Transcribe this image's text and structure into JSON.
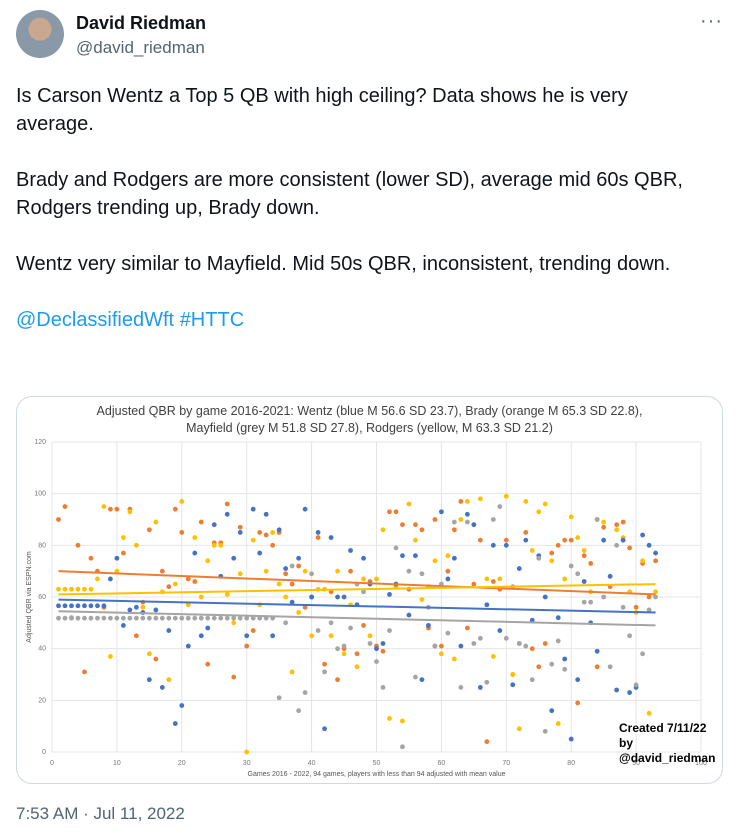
{
  "author": {
    "name": "David Riedman",
    "handle": "@david_riedman"
  },
  "more_label": "···",
  "tweet": {
    "paragraphs": [
      "Is Carson Wentz a Top 5 QB with high ceiling? Data shows he is very average.",
      "Brady and Rodgers are more consistent (lower SD), average mid 60s QBR, Rodgers trending up, Brady down.",
      "Wentz very similar to Mayfield. Mid 50s QBR, inconsistent, trending down."
    ],
    "mention": "@DeclassifiedWft",
    "hashtag": "#HTTC"
  },
  "timestamp": "7:53 AM · Jul 11, 2022",
  "chart_data": {
    "type": "scatter",
    "title_line1": "Adjusted QBR by game 2016-2021: Wentz (blue M 56.6 SD 23.7), Brady (orange M 65.3 SD 22.8),",
    "title_line2": "Mayfield (grey M 51.8 SD 27.8), Rodgers (yellow, M 63.3 SD 21.2)",
    "xlabel": "Games 2016 - 2022, 94 games, players with less than 94 adjusted with mean value",
    "ylabel": "Adjusted QBR via ESPN.com",
    "xlim": [
      0,
      100
    ],
    "ylim": [
      0,
      120
    ],
    "xticks": [
      "0",
      "10",
      "20",
      "30",
      "40",
      "50",
      "60",
      "70",
      "80",
      "90",
      "100"
    ],
    "yticks": [
      "0",
      "20",
      "40",
      "60",
      "80",
      "100",
      "120"
    ],
    "grid": true,
    "annotation_line1": "Created 7/11/22 by",
    "annotation_line2": "@david_riedman",
    "series": [
      {
        "name": "Brady",
        "color": "#ed7d31",
        "trend": [
          70,
          61
        ],
        "values": [
          90,
          95,
          52,
          80,
          31,
          75,
          70,
          56,
          94,
          94,
          77,
          94,
          45,
          58,
          86,
          36,
          70,
          64,
          94,
          85,
          67,
          66,
          89,
          34,
          81,
          81,
          96,
          29,
          87,
          41,
          47,
          85,
          84,
          80,
          85,
          69,
          65,
          72,
          56,
          60,
          83,
          34,
          62,
          28,
          40,
          70,
          38,
          49,
          66,
          41,
          39,
          93,
          93,
          88,
          63,
          88,
          86,
          48,
          90,
          41,
          70,
          86,
          97,
          48,
          65,
          82,
          4,
          66,
          63,
          82,
          30,
          42,
          85,
          40,
          33,
          42,
          77,
          80,
          82,
          82,
          19,
          76,
          73,
          33,
          87,
          64,
          88,
          89,
          79,
          56,
          73,
          60,
          74
        ]
      },
      {
        "name": "Rodgers",
        "color": "#ffc000",
        "trend": [
          61,
          65
        ],
        "values": [
          63,
          63,
          63,
          63,
          63,
          63,
          67,
          95,
          37,
          70,
          83,
          93,
          80,
          56,
          38,
          89,
          62,
          28,
          65,
          97,
          57,
          83,
          60,
          74,
          80,
          80,
          61,
          50,
          69,
          0,
          82,
          57,
          70,
          85,
          65,
          60,
          31,
          54,
          70,
          45,
          63,
          63,
          45,
          70,
          38,
          57,
          33,
          67,
          45,
          67,
          86,
          13,
          64,
          12,
          96,
          82,
          59,
          64,
          74,
          38,
          76,
          36,
          90,
          97,
          88,
          98,
          67,
          37,
          67,
          99,
          30,
          9,
          97,
          78,
          93,
          96,
          74,
          11,
          67,
          91,
          83,
          78,
          62,
          90,
          89,
          68,
          86,
          83,
          62,
          54,
          74,
          15,
          62
        ]
      },
      {
        "name": "Wentz",
        "color": "#4472c4",
        "trend": [
          59,
          54
        ],
        "values": [
          56.6,
          56.6,
          56.6,
          56.6,
          56.6,
          56.6,
          56.6,
          56.6,
          67,
          75,
          49,
          55,
          56,
          54,
          28,
          55,
          25,
          47,
          11,
          18,
          41,
          77,
          45,
          48,
          88,
          68,
          92,
          75,
          85,
          45,
          94,
          77,
          92,
          45,
          86,
          71,
          58,
          75,
          94,
          60,
          85,
          9,
          83,
          60,
          60,
          78,
          57,
          75,
          65,
          40,
          42,
          61,
          65,
          76,
          53,
          76,
          28,
          49,
          41,
          93,
          67,
          75,
          41,
          92,
          88,
          25,
          57,
          80,
          47,
          80,
          26,
          71,
          82,
          51,
          76,
          60,
          16,
          52,
          36,
          5,
          28,
          66,
          50,
          39,
          82,
          68,
          24,
          82,
          23,
          25,
          84,
          80,
          77
        ]
      },
      {
        "name": "Mayfield",
        "color": "#a5a5a5",
        "trend": [
          54.5,
          49
        ],
        "values": [
          51.8,
          51.8,
          51.8,
          51.8,
          51.8,
          51.8,
          51.8,
          51.8,
          51.8,
          51.8,
          51.8,
          51.8,
          51.8,
          51.8,
          51.8,
          51.8,
          51.8,
          51.8,
          51.8,
          51.8,
          51.8,
          51.8,
          51.8,
          51.8,
          51.8,
          51.8,
          51.8,
          51.8,
          51.8,
          51.8,
          51.8,
          51.8,
          51.8,
          51.8,
          21,
          50,
          72,
          16,
          23,
          69,
          47,
          31,
          50,
          40,
          41,
          48,
          65,
          62,
          42,
          35,
          25,
          47,
          79,
          2,
          70,
          29,
          69,
          56,
          41,
          65,
          46,
          89,
          25,
          89,
          42,
          44,
          27,
          90,
          95,
          44,
          64,
          42,
          41,
          28,
          75,
          8,
          34,
          43,
          32,
          72,
          69,
          58,
          58,
          90,
          60,
          33,
          80,
          56,
          45,
          26,
          38,
          55,
          60
        ]
      }
    ]
  }
}
